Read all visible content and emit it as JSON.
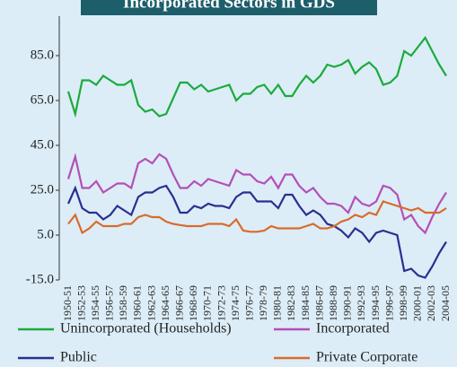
{
  "chart_data": {
    "type": "line",
    "title": "Incorporated Sectors in GDS",
    "categories": [
      "1950-51",
      null,
      "1952-53",
      null,
      "1954-55",
      null,
      "1956-57",
      null,
      "1958-59",
      null,
      "1960-61",
      null,
      "1962-63",
      null,
      "1964-65",
      null,
      "1966-67",
      null,
      "1968-69",
      null,
      "1970-71",
      null,
      "1972-73",
      null,
      "1974-75",
      null,
      "1976-77",
      null,
      "1978-79",
      null,
      "1980-81",
      null,
      "1982-83",
      null,
      "1984-85",
      null,
      "1986-87",
      null,
      "1988-89",
      null,
      "1990-91",
      null,
      "1992-93",
      null,
      "1994-95",
      null,
      "1996-97",
      null,
      "1998-99",
      null,
      "2000-01",
      null,
      "2002-03",
      null,
      "2004-05"
    ],
    "series": [
      {
        "name": "Unincorporated (Households)",
        "color": "#1aab3c",
        "values": [
          69,
          59,
          74,
          74,
          72,
          76,
          74,
          72,
          72,
          74,
          63,
          60,
          61,
          58,
          59,
          66,
          73,
          73,
          70,
          72,
          69,
          70,
          71,
          72,
          65,
          68,
          68,
          71,
          72,
          68,
          72,
          67,
          67,
          72,
          76,
          73,
          76,
          81,
          80,
          81,
          83,
          77,
          80,
          82,
          79,
          72,
          73,
          76,
          87,
          85,
          89,
          93,
          87,
          81,
          76
        ]
      },
      {
        "name": "Incorporated",
        "color": "#b44fb8",
        "values": [
          30,
          40,
          26,
          26,
          29,
          24,
          26,
          28,
          28,
          26,
          37,
          39,
          37,
          41,
          39,
          32,
          26,
          26,
          29,
          27,
          30,
          29,
          28,
          27,
          34,
          32,
          32,
          29,
          28,
          31,
          26,
          32,
          32,
          27,
          24,
          26,
          22,
          19,
          19,
          18,
          15,
          22,
          19,
          18,
          20,
          27,
          26,
          23,
          12,
          14,
          9,
          6,
          13,
          19,
          24
        ]
      },
      {
        "name": "Public",
        "color": "#2a2f8f",
        "values": [
          19,
          26,
          17,
          15,
          15,
          12,
          14,
          18,
          16,
          14,
          22,
          24,
          24,
          26,
          27,
          22,
          15,
          15,
          18,
          17,
          19,
          18,
          18,
          17,
          22,
          24,
          24,
          20,
          20,
          20,
          17,
          23,
          23,
          18,
          14,
          16,
          14,
          10,
          9,
          7,
          4,
          8,
          6,
          2,
          6,
          7,
          6,
          5,
          -11,
          -10,
          -13,
          -14,
          -9,
          -3,
          2
        ]
      },
      {
        "name": "Private Corporate",
        "color": "#d96b2a",
        "values": [
          10,
          14,
          6,
          8,
          11,
          9,
          9,
          9,
          10,
          10,
          13,
          14,
          13,
          13,
          11,
          10,
          9.5,
          9,
          9,
          9,
          10,
          10,
          10,
          9,
          12,
          7,
          6.5,
          6.5,
          7,
          9,
          8,
          8,
          8,
          8,
          9,
          10,
          8,
          8,
          9,
          11,
          12,
          14,
          13,
          15,
          14,
          20,
          19,
          18,
          17,
          16,
          17,
          15,
          15,
          15,
          17
        ]
      }
    ],
    "ylim": [
      -15,
      100
    ],
    "yticks": [
      {
        "value": -15,
        "label": "-15.0"
      },
      {
        "value": 5,
        "label": "5.0"
      },
      {
        "value": 25,
        "label": "25.0"
      },
      {
        "value": 45,
        "label": "45.0"
      },
      {
        "value": 65,
        "label": "65.0"
      },
      {
        "value": 85,
        "label": "85.0"
      }
    ],
    "legend": "bottom"
  }
}
